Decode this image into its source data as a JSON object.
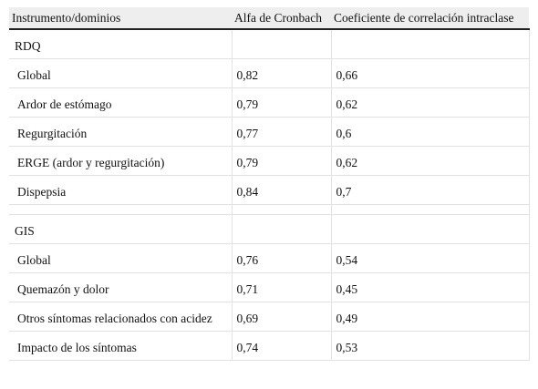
{
  "table": {
    "header": [
      "Instrumento/dominios",
      "Alfa de Cronbach",
      "Coeficiente de correlación intraclase"
    ],
    "sections": [
      {
        "title": "RDQ",
        "rows": [
          [
            "Global",
            "0,82",
            "0,66"
          ],
          [
            "Ardor de estómago",
            "0,79",
            "0,62"
          ],
          [
            "Regurgitación",
            "0,77",
            "0,6"
          ],
          [
            "ERGE (ardor y regurgitación)",
            "0,79",
            "0,62"
          ],
          [
            "Dispepsia",
            "0,84",
            "0,7"
          ]
        ]
      },
      {
        "title": "GIS",
        "rows": [
          [
            "Global",
            "0,76",
            "0,54"
          ],
          [
            "Quemazón y dolor",
            "0,71",
            "0,45"
          ],
          [
            "Otros síntomas relacionados con acidez",
            "0,69",
            "0,49"
          ],
          [
            "Impacto de los síntomas",
            "0,74",
            "0,53"
          ]
        ]
      }
    ]
  }
}
